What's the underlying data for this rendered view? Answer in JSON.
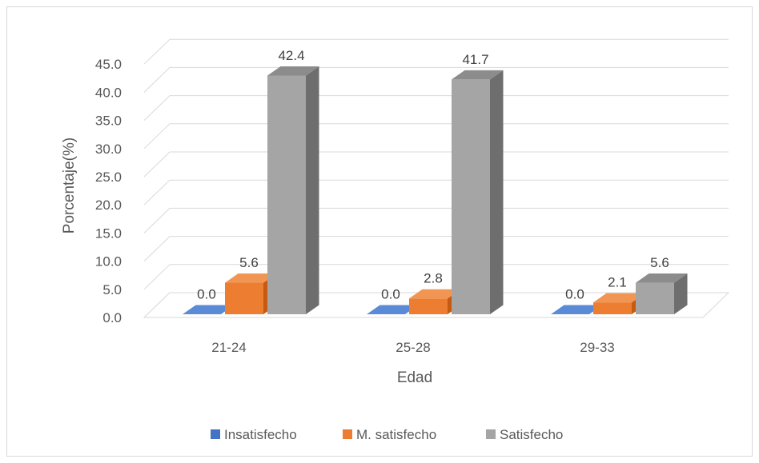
{
  "chart_data": {
    "type": "bar",
    "style": "3d-clustered-column",
    "categories": [
      "21-24",
      "25-28",
      "29-33"
    ],
    "series": [
      {
        "name": "Insatisfecho",
        "values": [
          0.0,
          0.0,
          0.0
        ],
        "labels": [
          "0.0",
          "0.0",
          "0.0"
        ],
        "color": "#4472c4",
        "side": "#2f5597",
        "top": "#5b8bd6"
      },
      {
        "name": "M. satisfecho",
        "values": [
          5.6,
          2.8,
          2.1
        ],
        "labels": [
          "5.6",
          "2.8",
          "2.1"
        ],
        "color": "#ed7d31",
        "side": "#c55a11",
        "top": "#f19553"
      },
      {
        "name": "Satisfecho",
        "values": [
          42.4,
          41.7,
          5.6
        ],
        "labels": [
          "42.4",
          "41.7",
          "5.6"
        ],
        "color": "#a5a5a5",
        "side": "#6e6e6e",
        "top": "#8c8c8c"
      }
    ],
    "y_ticks": [
      "0.0",
      "5.0",
      "10.0",
      "15.0",
      "20.0",
      "25.0",
      "30.0",
      "35.0",
      "40.0",
      "45.0"
    ],
    "ylim": [
      0,
      45
    ],
    "xlabel": "Edad",
    "ylabel": "Porcentaje(%)",
    "grid": true,
    "legend": "bottom"
  }
}
